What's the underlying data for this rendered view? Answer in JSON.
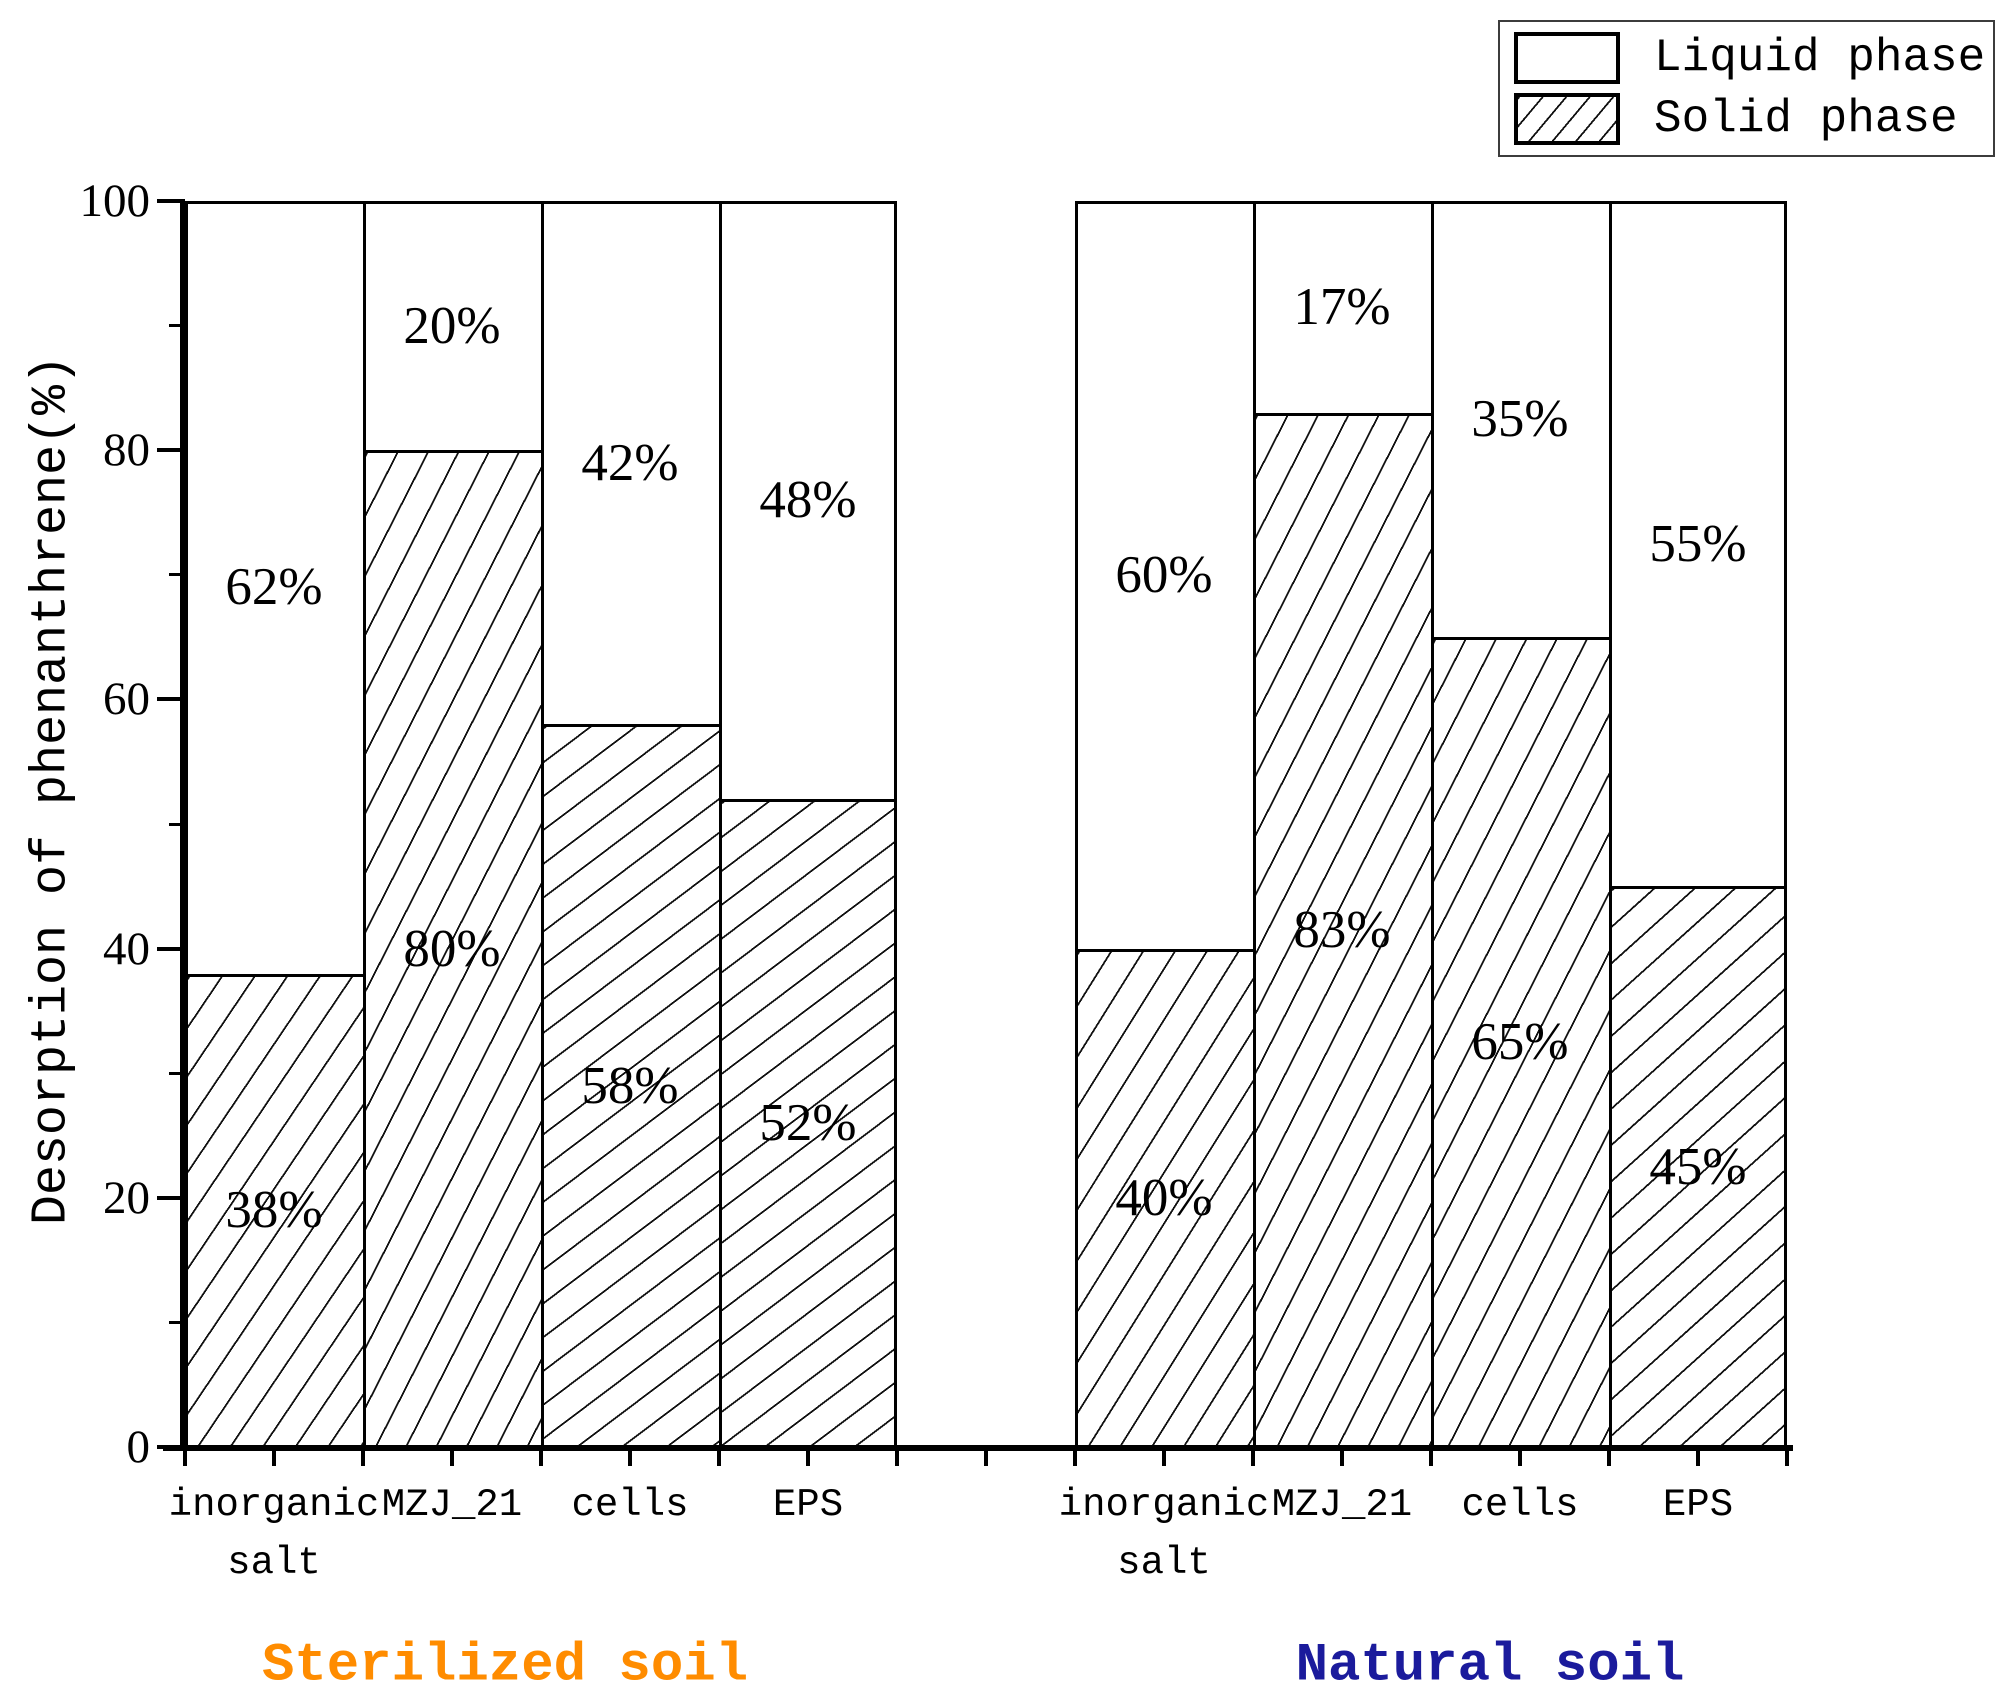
{
  "chart_data": {
    "type": "bar",
    "stacked": true,
    "percent_total": 100,
    "title": "",
    "ylabel": "Desorption of phenanthrene(%)",
    "xlabel": "",
    "ylim": [
      0,
      100
    ],
    "y_ticks": [
      0,
      20,
      40,
      60,
      80,
      100
    ],
    "y_minor_ticks": [
      10,
      30,
      50,
      70,
      90
    ],
    "grid": false,
    "legend_position": "top-right",
    "categories": [
      "inorganic salt",
      "MZJ_21",
      "cells",
      "EPS"
    ],
    "category_display": [
      "inorganic\nsalt",
      "MZJ_21",
      "cells",
      "EPS"
    ],
    "group_labels": [
      "Sterilized soil",
      "Natural soil"
    ],
    "group_label_colors": [
      "#ff8c00",
      "#1b1b9c"
    ],
    "series": [
      {
        "name": "Liquid phase",
        "pattern": "blank",
        "values": [
          [
            62,
            20,
            42,
            48
          ],
          [
            60,
            17,
            35,
            55
          ]
        ]
      },
      {
        "name": "Solid phase",
        "pattern": "hatch",
        "values": [
          [
            38,
            80,
            58,
            52
          ],
          [
            40,
            83,
            65,
            45
          ]
        ]
      }
    ],
    "value_label_suffix": "%"
  }
}
